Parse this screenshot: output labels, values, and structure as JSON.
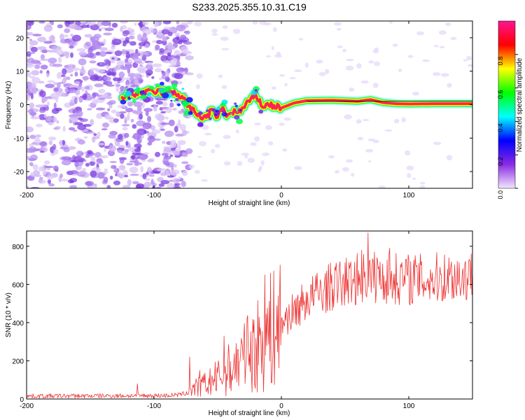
{
  "chart_data": [
    {
      "type": "heatmap",
      "title": "S233.2025.355.10.31.C19",
      "xlabel": "Height of straight line (km)",
      "ylabel": "Frequency (Hz)",
      "xlim": [
        -200,
        150
      ],
      "ylim": [
        -25,
        25
      ],
      "xticks": [
        -200,
        -100,
        0,
        100
      ],
      "yticks": [
        -20,
        -10,
        0,
        10,
        20
      ],
      "colorbar": {
        "label": "Normalized spectral amplitude",
        "range": [
          0,
          1
        ],
        "ticks": [
          "0.0",
          "0.2",
          "0.4",
          "0.6",
          "0.8"
        ],
        "colors": [
          "#f2e6ff",
          "#8a2be2",
          "#0000ff",
          "#00ffff",
          "#00ff00",
          "#ffff00",
          "#ff0000",
          "#ff1493"
        ]
      },
      "ridge": {
        "x": [
          -125,
          -110,
          -95,
          -85,
          -78,
          -72,
          -66,
          -60,
          -55,
          -50,
          -46,
          -42,
          -38,
          -34,
          -30,
          -25,
          -20,
          -15,
          -10,
          -5,
          0,
          10,
          20,
          40,
          60,
          70,
          80,
          90,
          100,
          120,
          150
        ],
        "y": [
          2.5,
          3.5,
          4,
          3.5,
          2.5,
          -1,
          -3,
          -4,
          -2,
          -3.5,
          -1,
          -3.5,
          -2,
          -2.5,
          -1,
          1,
          3,
          -0.5,
          0,
          -0.5,
          -1,
          0.5,
          1.2,
          1.3,
          1.0,
          1.5,
          0.6,
          0.3,
          0.2,
          0.3,
          0.3
        ]
      }
    },
    {
      "type": "line",
      "xlabel": "Height of straight line (km)",
      "ylabel": "SNR (10 * v/v)",
      "xlim": [
        -200,
        150
      ],
      "ylim": [
        0,
        880
      ],
      "xticks": [
        -200,
        -100,
        0,
        100
      ],
      "yticks": [
        0,
        200,
        400,
        600,
        800
      ],
      "series": [
        {
          "name": "SNR",
          "color": "#ee3333",
          "envelope_x": [
            -200,
            -90,
            -80,
            -75,
            -70,
            -60,
            -50,
            -40,
            -30,
            -20,
            -10,
            0,
            10,
            20,
            30,
            40,
            50,
            60,
            70,
            80,
            90,
            100,
            110,
            120,
            130,
            140,
            150
          ],
          "envelope_y": [
            15,
            18,
            22,
            30,
            50,
            75,
            110,
            160,
            210,
            270,
            340,
            400,
            460,
            520,
            560,
            590,
            610,
            630,
            640,
            635,
            630,
            630,
            625,
            630,
            640,
            640,
            640
          ],
          "spikes": [
            [
              -113,
              80
            ],
            [
              -72,
              220
            ],
            [
              -64,
              150
            ],
            [
              -45,
              330
            ],
            [
              -27,
              420
            ],
            [
              -13,
              650
            ],
            [
              63,
              780
            ],
            [
              68,
              870
            ],
            [
              75,
              740
            ],
            [
              85,
              790
            ],
            [
              110,
              720
            ]
          ]
        }
      ]
    }
  ]
}
